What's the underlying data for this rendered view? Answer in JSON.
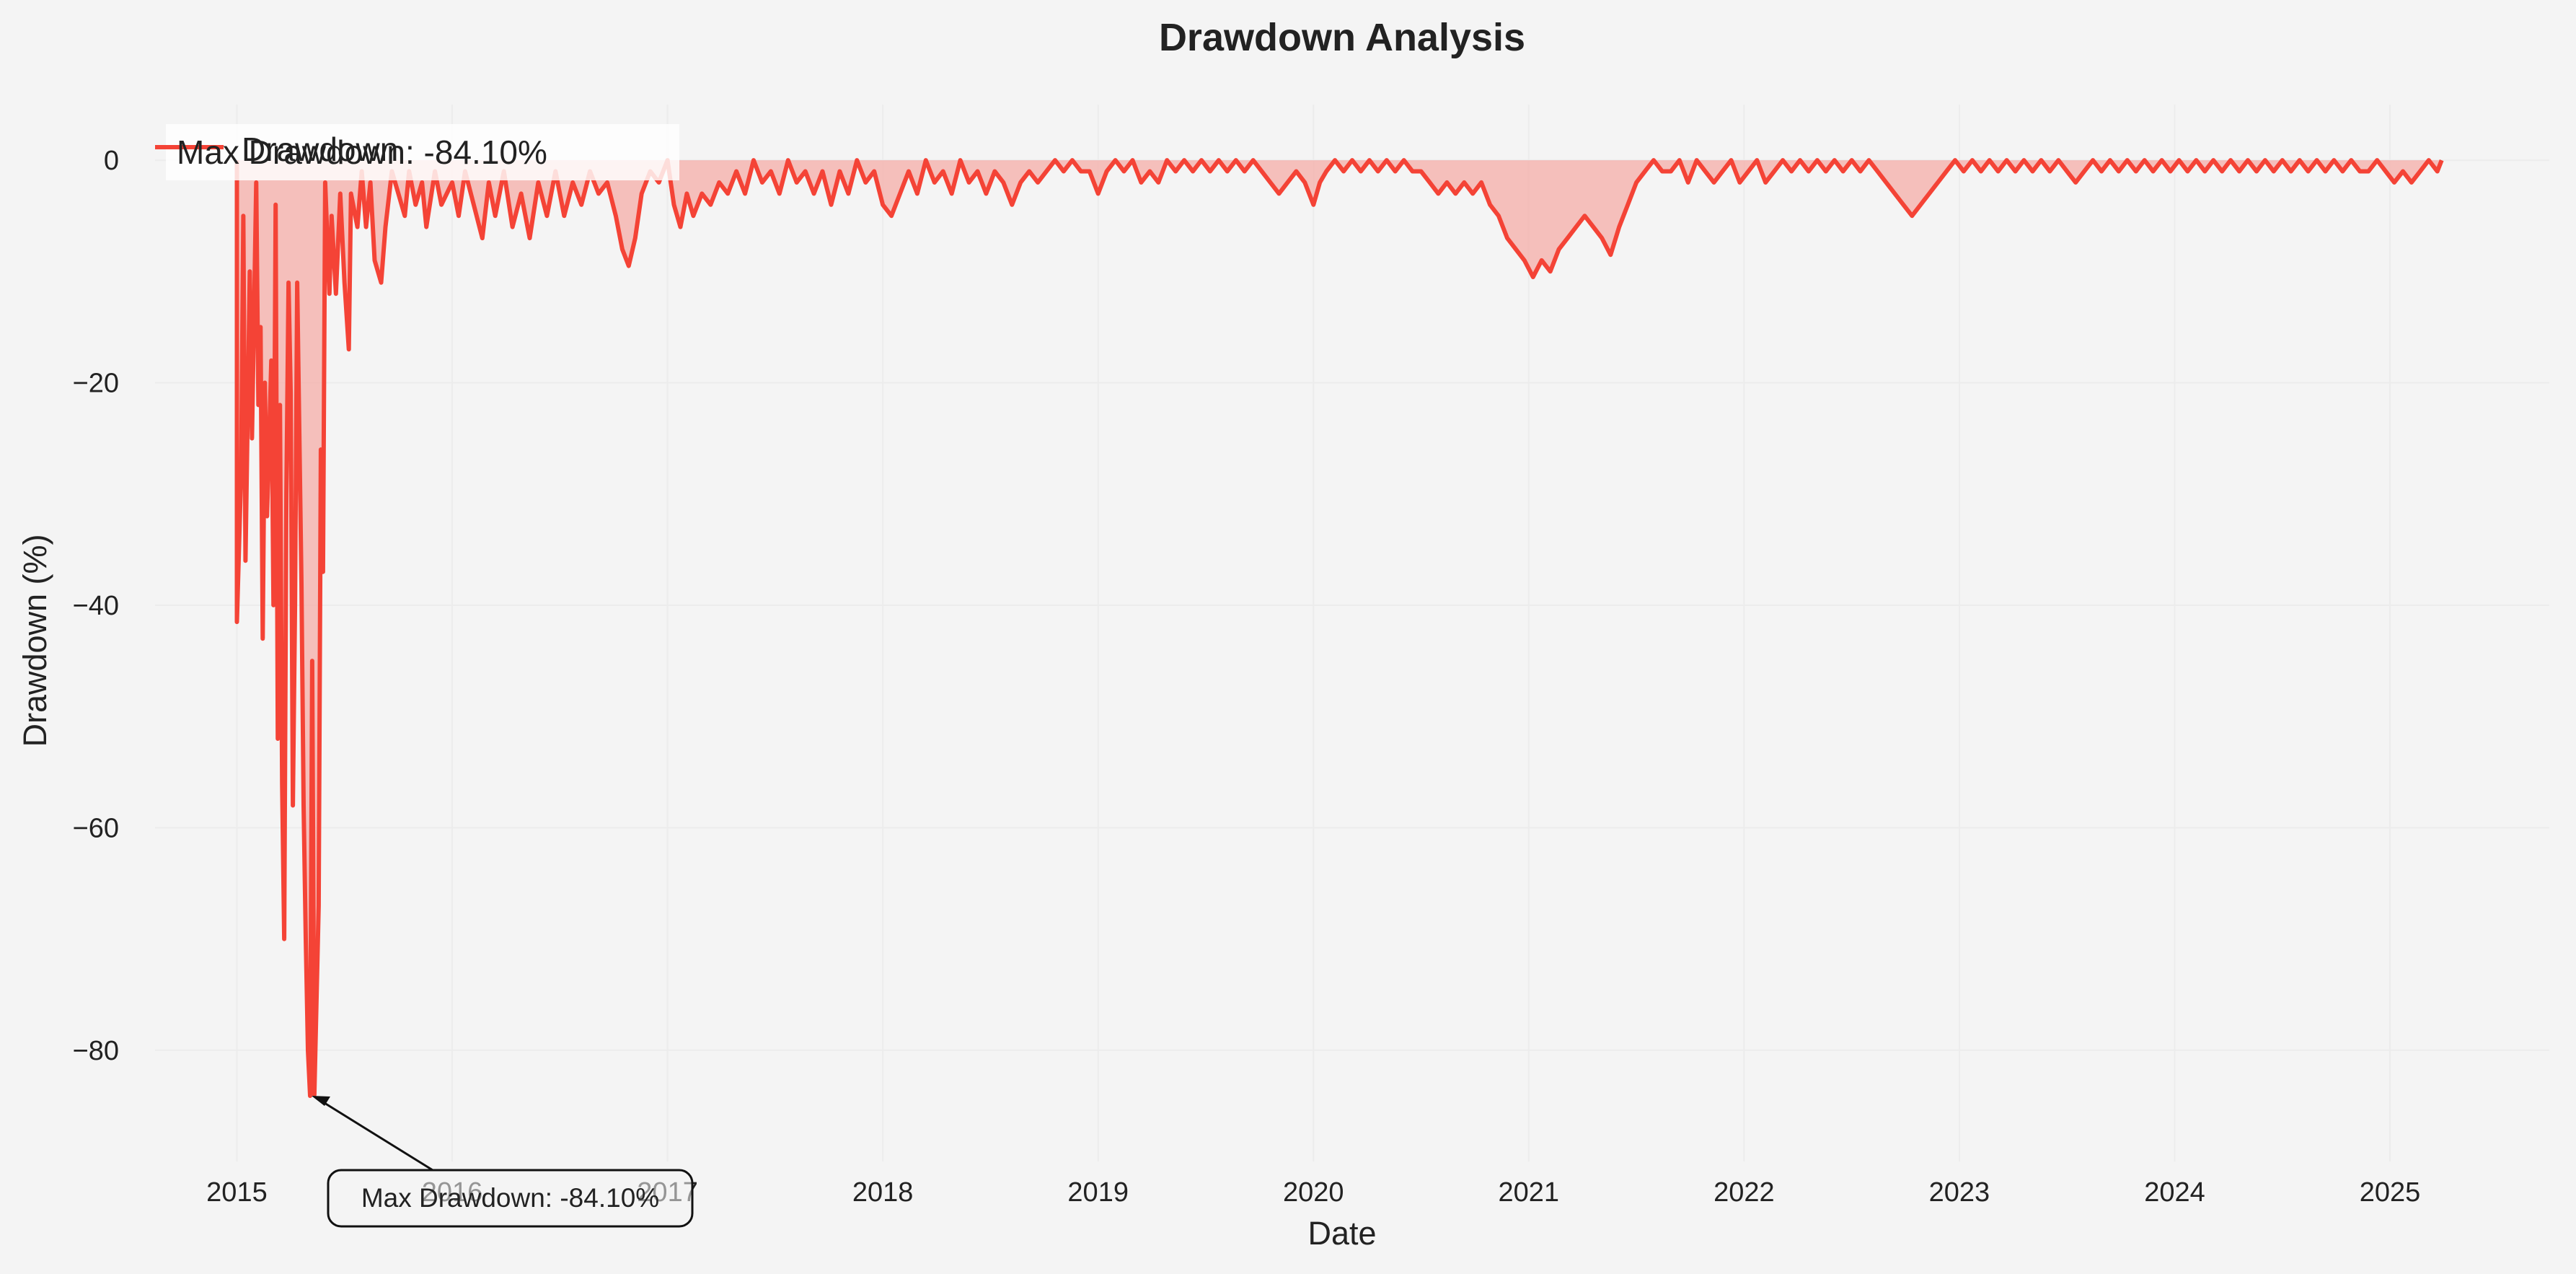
{
  "chart_data": {
    "type": "area",
    "title": "Drawdown Analysis",
    "xlabel": "Date",
    "ylabel": "Drawdown (%)",
    "xlim": [
      2014.62,
      2025.74
    ],
    "ylim": [
      -90,
      5
    ],
    "x_ticks": [
      2015,
      2016,
      2017,
      2018,
      2019,
      2020,
      2021,
      2022,
      2023,
      2024,
      2025
    ],
    "x_tick_labels": [
      "2015",
      "2016",
      "2017",
      "2018",
      "2019",
      "2020",
      "2021",
      "2022",
      "2023",
      "2024",
      "2025"
    ],
    "y_ticks": [
      0,
      -20,
      -40,
      -60,
      -80
    ],
    "y_tick_labels": [
      "0",
      "−20",
      "−40",
      "−60",
      "−80"
    ],
    "grid": true,
    "legend": {
      "placement": "top-left",
      "entries": [
        {
          "label": "Drawdown",
          "color": "#f44336"
        },
        {
          "label": "Max Drawdown: -84.10%",
          "color": "#f44336"
        }
      ]
    },
    "series": [
      {
        "name": "Drawdown",
        "color": "#f44336",
        "fill_color": "#f5b5b0",
        "points": [
          [
            2015.0,
            0
          ],
          [
            2015.0,
            -41.5
          ],
          [
            2015.02,
            -28
          ],
          [
            2015.03,
            -5
          ],
          [
            2015.04,
            -36
          ],
          [
            2015.06,
            -10
          ],
          [
            2015.07,
            -25
          ],
          [
            2015.09,
            -2
          ],
          [
            2015.1,
            -22
          ],
          [
            2015.11,
            -15
          ],
          [
            2015.12,
            -43
          ],
          [
            2015.13,
            -20
          ],
          [
            2015.14,
            -32
          ],
          [
            2015.16,
            -18
          ],
          [
            2015.17,
            -40
          ],
          [
            2015.18,
            -4
          ],
          [
            2015.19,
            -52
          ],
          [
            2015.2,
            -22
          ],
          [
            2015.21,
            -56
          ],
          [
            2015.22,
            -70
          ],
          [
            2015.23,
            -30
          ],
          [
            2015.24,
            -11
          ],
          [
            2015.25,
            -21
          ],
          [
            2015.26,
            -58
          ],
          [
            2015.27,
            -40
          ],
          [
            2015.28,
            -11
          ],
          [
            2015.3,
            -38
          ],
          [
            2015.31,
            -58
          ],
          [
            2015.32,
            -70
          ],
          [
            2015.33,
            -80
          ],
          [
            2015.34,
            -84.1
          ],
          [
            2015.35,
            -45
          ],
          [
            2015.36,
            -84
          ],
          [
            2015.38,
            -67
          ],
          [
            2015.39,
            -26
          ],
          [
            2015.4,
            -37
          ],
          [
            2015.41,
            -2
          ],
          [
            2015.43,
            -12
          ],
          [
            2015.44,
            -5
          ],
          [
            2015.46,
            -12
          ],
          [
            2015.48,
            -3
          ],
          [
            2015.5,
            -11
          ],
          [
            2015.52,
            -17
          ],
          [
            2015.53,
            -3
          ],
          [
            2015.56,
            -6
          ],
          [
            2015.58,
            -1
          ],
          [
            2015.6,
            -6
          ],
          [
            2015.62,
            -2
          ],
          [
            2015.64,
            -9
          ],
          [
            2015.67,
            -11
          ],
          [
            2015.69,
            -6
          ],
          [
            2015.72,
            -1
          ],
          [
            2015.75,
            -3
          ],
          [
            2015.78,
            -5
          ],
          [
            2015.8,
            -1
          ],
          [
            2015.83,
            -4
          ],
          [
            2015.86,
            -2
          ],
          [
            2015.88,
            -6
          ],
          [
            2015.92,
            -1
          ],
          [
            2015.95,
            -4
          ],
          [
            2016.0,
            -2
          ],
          [
            2016.03,
            -5
          ],
          [
            2016.06,
            -1
          ],
          [
            2016.1,
            -4
          ],
          [
            2016.14,
            -7
          ],
          [
            2016.17,
            -2
          ],
          [
            2016.2,
            -5
          ],
          [
            2016.24,
            -1
          ],
          [
            2016.28,
            -6
          ],
          [
            2016.32,
            -3
          ],
          [
            2016.36,
            -7
          ],
          [
            2016.4,
            -2
          ],
          [
            2016.44,
            -5
          ],
          [
            2016.48,
            -1
          ],
          [
            2016.52,
            -5
          ],
          [
            2016.56,
            -2
          ],
          [
            2016.6,
            -4
          ],
          [
            2016.64,
            -1
          ],
          [
            2016.68,
            -3
          ],
          [
            2016.72,
            -2
          ],
          [
            2016.76,
            -5
          ],
          [
            2016.79,
            -8
          ],
          [
            2016.82,
            -9.5
          ],
          [
            2016.85,
            -7
          ],
          [
            2016.88,
            -3
          ],
          [
            2016.92,
            -1
          ],
          [
            2016.96,
            -2
          ],
          [
            2017.0,
            0
          ],
          [
            2017.03,
            -4
          ],
          [
            2017.06,
            -6
          ],
          [
            2017.09,
            -3
          ],
          [
            2017.12,
            -5
          ],
          [
            2017.16,
            -3
          ],
          [
            2017.2,
            -4
          ],
          [
            2017.24,
            -2
          ],
          [
            2017.28,
            -3
          ],
          [
            2017.32,
            -1
          ],
          [
            2017.36,
            -3
          ],
          [
            2017.4,
            0
          ],
          [
            2017.44,
            -2
          ],
          [
            2017.48,
            -1
          ],
          [
            2017.52,
            -3
          ],
          [
            2017.56,
            0
          ],
          [
            2017.6,
            -2
          ],
          [
            2017.64,
            -1
          ],
          [
            2017.68,
            -3
          ],
          [
            2017.72,
            -1
          ],
          [
            2017.76,
            -4
          ],
          [
            2017.8,
            -1
          ],
          [
            2017.84,
            -3
          ],
          [
            2017.88,
            0
          ],
          [
            2017.92,
            -2
          ],
          [
            2017.96,
            -1
          ],
          [
            2018.0,
            -4
          ],
          [
            2018.04,
            -5
          ],
          [
            2018.08,
            -3
          ],
          [
            2018.12,
            -1
          ],
          [
            2018.16,
            -3
          ],
          [
            2018.2,
            0
          ],
          [
            2018.24,
            -2
          ],
          [
            2018.28,
            -1
          ],
          [
            2018.32,
            -3
          ],
          [
            2018.36,
            0
          ],
          [
            2018.4,
            -2
          ],
          [
            2018.44,
            -1
          ],
          [
            2018.48,
            -3
          ],
          [
            2018.52,
            -1
          ],
          [
            2018.56,
            -2
          ],
          [
            2018.6,
            -4
          ],
          [
            2018.64,
            -2
          ],
          [
            2018.68,
            -1
          ],
          [
            2018.72,
            -2
          ],
          [
            2018.76,
            -1
          ],
          [
            2018.8,
            0
          ],
          [
            2018.84,
            -1
          ],
          [
            2018.88,
            0
          ],
          [
            2018.92,
            -1
          ],
          [
            2018.96,
            -1
          ],
          [
            2019.0,
            -3
          ],
          [
            2019.04,
            -1
          ],
          [
            2019.08,
            0
          ],
          [
            2019.12,
            -1
          ],
          [
            2019.16,
            0
          ],
          [
            2019.2,
            -2
          ],
          [
            2019.24,
            -1
          ],
          [
            2019.28,
            -2
          ],
          [
            2019.32,
            0
          ],
          [
            2019.36,
            -1
          ],
          [
            2019.4,
            0
          ],
          [
            2019.44,
            -1
          ],
          [
            2019.48,
            0
          ],
          [
            2019.52,
            -1
          ],
          [
            2019.56,
            0
          ],
          [
            2019.6,
            -1
          ],
          [
            2019.64,
            0
          ],
          [
            2019.68,
            -1
          ],
          [
            2019.72,
            0
          ],
          [
            2019.76,
            -1
          ],
          [
            2019.8,
            -2
          ],
          [
            2019.84,
            -3
          ],
          [
            2019.88,
            -2
          ],
          [
            2019.92,
            -1
          ],
          [
            2019.96,
            -2
          ],
          [
            2020.0,
            -4
          ],
          [
            2020.03,
            -2
          ],
          [
            2020.06,
            -1
          ],
          [
            2020.1,
            0
          ],
          [
            2020.14,
            -1
          ],
          [
            2020.18,
            0
          ],
          [
            2020.22,
            -1
          ],
          [
            2020.26,
            0
          ],
          [
            2020.3,
            -1
          ],
          [
            2020.34,
            0
          ],
          [
            2020.38,
            -1
          ],
          [
            2020.42,
            0
          ],
          [
            2020.46,
            -1
          ],
          [
            2020.5,
            -1
          ],
          [
            2020.54,
            -2
          ],
          [
            2020.58,
            -3
          ],
          [
            2020.62,
            -2
          ],
          [
            2020.66,
            -3
          ],
          [
            2020.7,
            -2
          ],
          [
            2020.74,
            -3
          ],
          [
            2020.78,
            -2
          ],
          [
            2020.82,
            -4
          ],
          [
            2020.86,
            -5
          ],
          [
            2020.9,
            -7
          ],
          [
            2020.94,
            -8
          ],
          [
            2020.98,
            -9
          ],
          [
            2021.02,
            -10.5
          ],
          [
            2021.06,
            -9
          ],
          [
            2021.1,
            -10
          ],
          [
            2021.14,
            -8
          ],
          [
            2021.18,
            -7
          ],
          [
            2021.22,
            -6
          ],
          [
            2021.26,
            -5
          ],
          [
            2021.3,
            -6
          ],
          [
            2021.34,
            -7
          ],
          [
            2021.38,
            -8.5
          ],
          [
            2021.42,
            -6
          ],
          [
            2021.46,
            -4
          ],
          [
            2021.5,
            -2
          ],
          [
            2021.54,
            -1
          ],
          [
            2021.58,
            0
          ],
          [
            2021.62,
            -1
          ],
          [
            2021.66,
            -1
          ],
          [
            2021.7,
            0
          ],
          [
            2021.74,
            -2
          ],
          [
            2021.78,
            0
          ],
          [
            2021.82,
            -1
          ],
          [
            2021.86,
            -2
          ],
          [
            2021.9,
            -1
          ],
          [
            2021.94,
            0
          ],
          [
            2021.98,
            -2
          ],
          [
            2022.02,
            -1
          ],
          [
            2022.06,
            0
          ],
          [
            2022.1,
            -2
          ],
          [
            2022.14,
            -1
          ],
          [
            2022.18,
            0
          ],
          [
            2022.22,
            -1
          ],
          [
            2022.26,
            0
          ],
          [
            2022.3,
            -1
          ],
          [
            2022.34,
            0
          ],
          [
            2022.38,
            -1
          ],
          [
            2022.42,
            0
          ],
          [
            2022.46,
            -1
          ],
          [
            2022.5,
            0
          ],
          [
            2022.54,
            -1
          ],
          [
            2022.58,
            0
          ],
          [
            2022.62,
            -1
          ],
          [
            2022.66,
            -2
          ],
          [
            2022.7,
            -3
          ],
          [
            2022.74,
            -4
          ],
          [
            2022.78,
            -5
          ],
          [
            2022.82,
            -4
          ],
          [
            2022.86,
            -3
          ],
          [
            2022.9,
            -2
          ],
          [
            2022.94,
            -1
          ],
          [
            2022.98,
            0
          ],
          [
            2023.02,
            -1
          ],
          [
            2023.06,
            0
          ],
          [
            2023.1,
            -1
          ],
          [
            2023.14,
            0
          ],
          [
            2023.18,
            -1
          ],
          [
            2023.22,
            0
          ],
          [
            2023.26,
            -1
          ],
          [
            2023.3,
            0
          ],
          [
            2023.34,
            -1
          ],
          [
            2023.38,
            0
          ],
          [
            2023.42,
            -1
          ],
          [
            2023.46,
            0
          ],
          [
            2023.5,
            -1
          ],
          [
            2023.54,
            -2
          ],
          [
            2023.58,
            -1
          ],
          [
            2023.62,
            0
          ],
          [
            2023.66,
            -1
          ],
          [
            2023.7,
            0
          ],
          [
            2023.74,
            -1
          ],
          [
            2023.78,
            0
          ],
          [
            2023.82,
            -1
          ],
          [
            2023.86,
            0
          ],
          [
            2023.9,
            -1
          ],
          [
            2023.94,
            0
          ],
          [
            2023.98,
            -1
          ],
          [
            2024.02,
            0
          ],
          [
            2024.06,
            -1
          ],
          [
            2024.1,
            0
          ],
          [
            2024.14,
            -1
          ],
          [
            2024.18,
            0
          ],
          [
            2024.22,
            -1
          ],
          [
            2024.26,
            0
          ],
          [
            2024.3,
            -1
          ],
          [
            2024.34,
            0
          ],
          [
            2024.38,
            -1
          ],
          [
            2024.42,
            0
          ],
          [
            2024.46,
            -1
          ],
          [
            2024.5,
            0
          ],
          [
            2024.54,
            -1
          ],
          [
            2024.58,
            0
          ],
          [
            2024.62,
            -1
          ],
          [
            2024.66,
            0
          ],
          [
            2024.7,
            -1
          ],
          [
            2024.74,
            0
          ],
          [
            2024.78,
            -1
          ],
          [
            2024.82,
            0
          ],
          [
            2024.86,
            -1
          ],
          [
            2024.9,
            -1
          ],
          [
            2024.94,
            0
          ],
          [
            2024.98,
            -1
          ],
          [
            2025.02,
            -2
          ],
          [
            2025.06,
            -1
          ],
          [
            2025.1,
            -2
          ],
          [
            2025.14,
            -1
          ],
          [
            2025.18,
            0
          ],
          [
            2025.22,
            -1
          ],
          [
            2025.24,
            0
          ]
        ]
      }
    ],
    "max_drawdown": {
      "x": 2015.34,
      "y": -84.1,
      "label": "Max Drawdown: -84.10%"
    }
  }
}
